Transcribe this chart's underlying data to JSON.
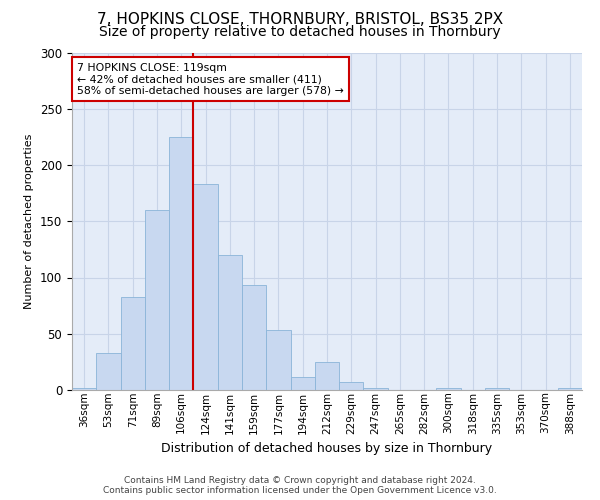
{
  "title1": "7, HOPKINS CLOSE, THORNBURY, BRISTOL, BS35 2PX",
  "title2": "Size of property relative to detached houses in Thornbury",
  "xlabel": "Distribution of detached houses by size in Thornbury",
  "ylabel": "Number of detached properties",
  "bar_labels": [
    "36sqm",
    "53sqm",
    "71sqm",
    "89sqm",
    "106sqm",
    "124sqm",
    "141sqm",
    "159sqm",
    "177sqm",
    "194sqm",
    "212sqm",
    "229sqm",
    "247sqm",
    "265sqm",
    "282sqm",
    "300sqm",
    "318sqm",
    "335sqm",
    "353sqm",
    "370sqm",
    "388sqm"
  ],
  "bar_heights": [
    2,
    33,
    83,
    160,
    225,
    183,
    120,
    93,
    53,
    12,
    25,
    7,
    2,
    0,
    0,
    2,
    0,
    2,
    0,
    0,
    2
  ],
  "bar_color": "#c8d8f0",
  "bar_edgecolor": "#8ab4d8",
  "vline_x": 5.0,
  "vline_color": "#cc0000",
  "annotation_text": "7 HOPKINS CLOSE: 119sqm\n← 42% of detached houses are smaller (411)\n58% of semi-detached houses are larger (578) →",
  "annotation_box_color": "#ffffff",
  "annotation_box_edgecolor": "#cc0000",
  "ylim": [
    0,
    300
  ],
  "yticks": [
    0,
    50,
    100,
    150,
    200,
    250,
    300
  ],
  "grid_color": "#c8d4e8",
  "bg_color": "#e4ecf8",
  "footer1": "Contains HM Land Registry data © Crown copyright and database right 2024.",
  "footer2": "Contains public sector information licensed under the Open Government Licence v3.0.",
  "title1_fontsize": 11,
  "title2_fontsize": 10,
  "bar_width": 1.0
}
